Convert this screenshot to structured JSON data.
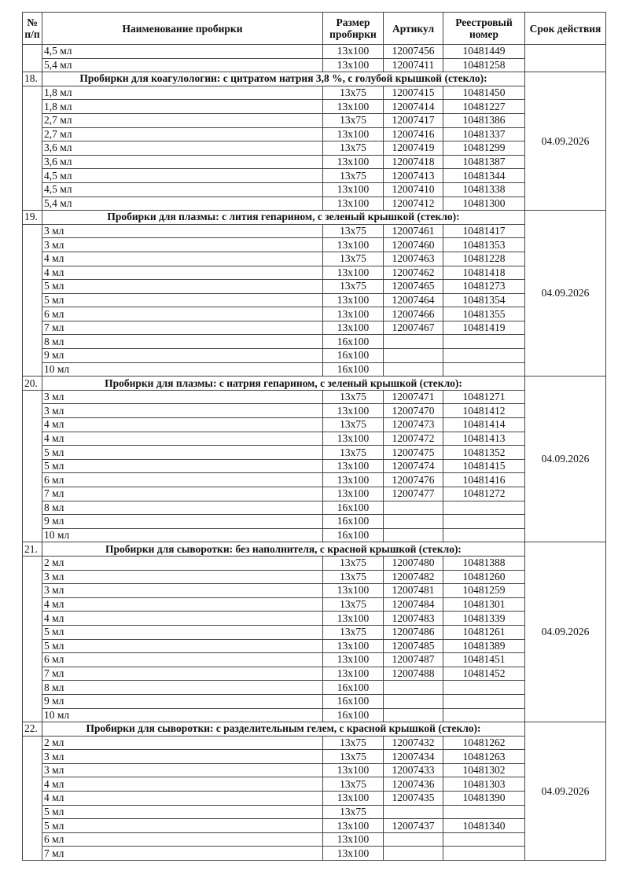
{
  "headers": {
    "num": "№ п/п",
    "name": "Наименование пробирки",
    "size": "Размер пробирки",
    "article": "Артикул",
    "registry": "Реестровый номер",
    "expiry": "Срок действия"
  },
  "carryover": {
    "rows": [
      {
        "name": "4,5 мл",
        "size": "13x100",
        "article": "12007456",
        "registry": "10481449"
      },
      {
        "name": "5,4 мл",
        "size": "13x100",
        "article": "12007411",
        "registry": "10481258"
      }
    ],
    "expiry": ""
  },
  "sections": [
    {
      "num": "18.",
      "title": "Пробирки для коагулологии: с цитратом натрия 3,8 %, с голубой крышкой (стекло):",
      "expiry": "04.09.2026",
      "rows": [
        {
          "name": "1,8 мл",
          "size": "13x75",
          "article": "12007415",
          "registry": "10481450"
        },
        {
          "name": "1,8 мл",
          "size": "13x100",
          "article": "12007414",
          "registry": "10481227"
        },
        {
          "name": "2,7 мл",
          "size": "13x75",
          "article": "12007417",
          "registry": "10481386"
        },
        {
          "name": "2,7 мл",
          "size": "13x100",
          "article": "12007416",
          "registry": "10481337"
        },
        {
          "name": "3,6 мл",
          "size": "13x75",
          "article": "12007419",
          "registry": "10481299"
        },
        {
          "name": "3,6 мл",
          "size": "13x100",
          "article": "12007418",
          "registry": "10481387"
        },
        {
          "name": "4,5 мл",
          "size": "13x75",
          "article": "12007413",
          "registry": "10481344"
        },
        {
          "name": "4,5 мл",
          "size": "13x100",
          "article": "12007410",
          "registry": "10481338"
        },
        {
          "name": "5,4 мл",
          "size": "13x100",
          "article": "12007412",
          "registry": "10481300"
        }
      ]
    },
    {
      "num": "19.",
      "title": "Пробирки для плазмы: с лития гепарином, с зеленый крышкой (стекло):",
      "expiry": "04.09.2026",
      "rows": [
        {
          "name": "3 мл",
          "size": "13x75",
          "article": "12007461",
          "registry": "10481417"
        },
        {
          "name": "3 мл",
          "size": "13x100",
          "article": "12007460",
          "registry": "10481353"
        },
        {
          "name": "4 мл",
          "size": "13x75",
          "article": "12007463",
          "registry": "10481228"
        },
        {
          "name": "4 мл",
          "size": "13x100",
          "article": "12007462",
          "registry": "10481418"
        },
        {
          "name": "5 мл",
          "size": "13x75",
          "article": "12007465",
          "registry": "10481273"
        },
        {
          "name": "5 мл",
          "size": "13x100",
          "article": "12007464",
          "registry": "10481354"
        },
        {
          "name": "6 мл",
          "size": "13x100",
          "article": "12007466",
          "registry": "10481355"
        },
        {
          "name": "7 мл",
          "size": "13x100",
          "article": "12007467",
          "registry": "10481419"
        },
        {
          "name": "8 мл",
          "size": "16x100",
          "article": "",
          "registry": ""
        },
        {
          "name": "9 мл",
          "size": "16x100",
          "article": "",
          "registry": ""
        },
        {
          "name": "10 мл",
          "size": "16x100",
          "article": "",
          "registry": ""
        }
      ]
    },
    {
      "num": "20.",
      "title": "Пробирки для плазмы: с натрия гепарином, с зеленый крышкой (стекло):",
      "expiry": "04.09.2026",
      "rows": [
        {
          "name": "3 мл",
          "size": "13x75",
          "article": "12007471",
          "registry": "10481271"
        },
        {
          "name": "3 мл",
          "size": "13x100",
          "article": "12007470",
          "registry": "10481412"
        },
        {
          "name": "4 мл",
          "size": "13x75",
          "article": "12007473",
          "registry": "10481414"
        },
        {
          "name": "4 мл",
          "size": "13x100",
          "article": "12007472",
          "registry": "10481413"
        },
        {
          "name": "5 мл",
          "size": "13x75",
          "article": "12007475",
          "registry": "10481352"
        },
        {
          "name": "5 мл",
          "size": "13x100",
          "article": "12007474",
          "registry": "10481415"
        },
        {
          "name": "6 мл",
          "size": "13x100",
          "article": "12007476",
          "registry": "10481416"
        },
        {
          "name": "7 мл",
          "size": "13x100",
          "article": "12007477",
          "registry": "10481272"
        },
        {
          "name": "8 мл",
          "size": "16x100",
          "article": "",
          "registry": ""
        },
        {
          "name": "9 мл",
          "size": "16x100",
          "article": "",
          "registry": ""
        },
        {
          "name": "10 мл",
          "size": "16x100",
          "article": "",
          "registry": ""
        }
      ]
    },
    {
      "num": "21.",
      "title": "Пробирки для сыворотки: без наполнителя, с красной крышкой (стекло):",
      "expiry": "04.09.2026",
      "rows": [
        {
          "name": "2 мл",
          "size": "13x75",
          "article": "12007480",
          "registry": "10481388"
        },
        {
          "name": "3 мл",
          "size": "13x75",
          "article": "12007482",
          "registry": "10481260"
        },
        {
          "name": "3 мл",
          "size": "13x100",
          "article": "12007481",
          "registry": "10481259"
        },
        {
          "name": "4 мл",
          "size": "13x75",
          "article": "12007484",
          "registry": "10481301"
        },
        {
          "name": "4 мл",
          "size": "13x100",
          "article": "12007483",
          "registry": "10481339"
        },
        {
          "name": "5 мл",
          "size": "13x75",
          "article": "12007486",
          "registry": "10481261"
        },
        {
          "name": "5 мл",
          "size": "13x100",
          "article": "12007485",
          "registry": "10481389"
        },
        {
          "name": "6 мл",
          "size": "13x100",
          "article": "12007487",
          "registry": "10481451"
        },
        {
          "name": "7 мл",
          "size": "13x100",
          "article": "12007488",
          "registry": "10481452"
        },
        {
          "name": "8 мл",
          "size": "16x100",
          "article": "",
          "registry": ""
        },
        {
          "name": "9 мл",
          "size": "16x100",
          "article": "",
          "registry": ""
        },
        {
          "name": "10 мл",
          "size": "16x100",
          "article": "",
          "registry": ""
        }
      ]
    },
    {
      "num": "22.",
      "title": "Пробирки для сыворотки: с разделительным гелем, с красной крышкой (стекло):",
      "expiry": "04.09.2026",
      "rows": [
        {
          "name": "2 мл",
          "size": "13x75",
          "article": "12007432",
          "registry": "10481262"
        },
        {
          "name": "3 мл",
          "size": "13x75",
          "article": "12007434",
          "registry": "10481263"
        },
        {
          "name": "3 мл",
          "size": "13x100",
          "article": "12007433",
          "registry": "10481302"
        },
        {
          "name": "4 мл",
          "size": "13x75",
          "article": "12007436",
          "registry": "10481303"
        },
        {
          "name": "4 мл",
          "size": "13x100",
          "article": "12007435",
          "registry": "10481390"
        },
        {
          "name": "5 мл",
          "size": "13x75",
          "article": "",
          "registry": ""
        },
        {
          "name": "5 мл",
          "size": "13x100",
          "article": "12007437",
          "registry": "10481340"
        },
        {
          "name": "6 мл",
          "size": "13x100",
          "article": "",
          "registry": ""
        },
        {
          "name": "7 мл",
          "size": "13x100",
          "article": "",
          "registry": ""
        }
      ]
    }
  ]
}
